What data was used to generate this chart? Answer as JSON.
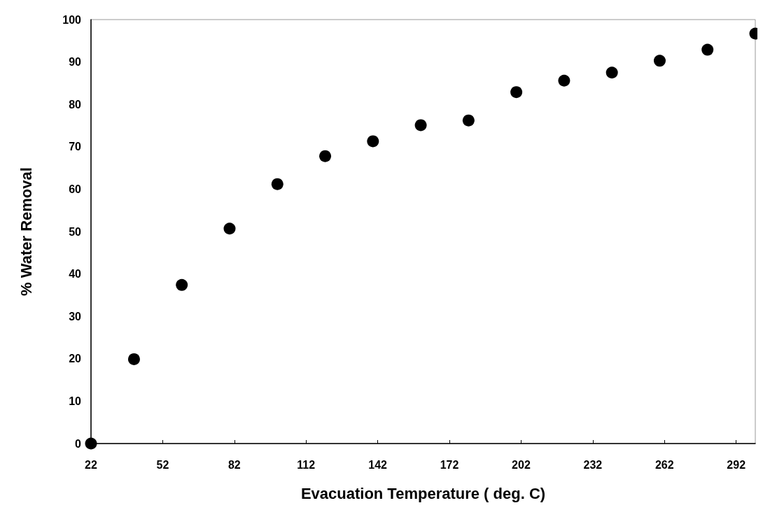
{
  "chart_data": {
    "type": "scatter",
    "xlabel": "Evacuation Temperature ( deg. C)",
    "ylabel": "% Water Removal",
    "x": [
      22,
      40,
      60,
      80,
      100,
      120,
      140,
      160,
      180,
      200,
      220,
      240,
      260,
      280,
      300
    ],
    "values": [
      0,
      19.9,
      37.4,
      50.7,
      61.2,
      67.8,
      71.3,
      75.1,
      76.2,
      82.9,
      85.6,
      87.5,
      90.3,
      92.9,
      96.7
    ],
    "color": "#000000",
    "marker": "circle",
    "xlim": [
      22,
      300
    ],
    "xticks": [
      22,
      52,
      82,
      112,
      142,
      172,
      202,
      232,
      262,
      292
    ],
    "ylim": [
      0,
      100
    ],
    "yticks": [
      0,
      10,
      20,
      30,
      40,
      50,
      60,
      70,
      80,
      90,
      100
    ],
    "grid": false
  }
}
